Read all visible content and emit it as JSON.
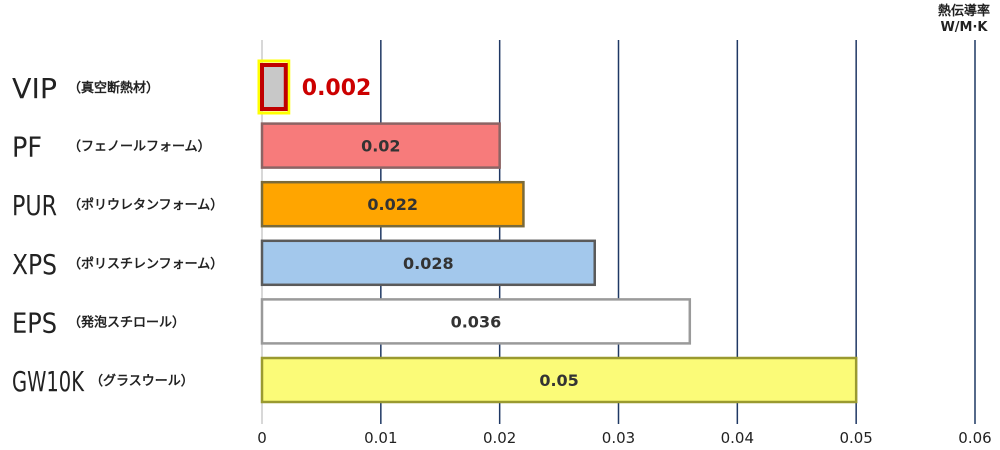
{
  "chart_data": {
    "type": "bar",
    "orientation": "horizontal",
    "unit_label": [
      "熱伝導率",
      "W/M·K"
    ],
    "categories": [
      {
        "abbr": "VIP",
        "name": "（真空断熱材）"
      },
      {
        "abbr": "PF",
        "name": "（フェノールフォーム）"
      },
      {
        "abbr": "PUR",
        "name": "（ポリウレタンフォーム）"
      },
      {
        "abbr": "XPS",
        "name": "（ポリスチレンフォーム）"
      },
      {
        "abbr": "EPS",
        "name": "（発泡スチロール）"
      },
      {
        "abbr": "GW10K",
        "name": "（グラスウール）"
      }
    ],
    "values": [
      0.002,
      0.02,
      0.022,
      0.028,
      0.036,
      0.05
    ],
    "value_labels": [
      "0.002",
      "0.02",
      "0.022",
      "0.028",
      "0.036",
      "0.05"
    ],
    "bar_fill": [
      "#c8c8c8",
      "#f77b7b",
      "#ffa500",
      "#a3c8ec",
      "#ffffff",
      "#fbfb78"
    ],
    "bar_stroke": [
      "#c00000",
      "#8c6464",
      "#7a6a3a",
      "#5a5a5a",
      "#9a9a9a",
      "#9a9a30"
    ],
    "highlight_outline": "#ffff00",
    "highlight_label_color": "#cc0000",
    "xlim": [
      0,
      0.06
    ],
    "xticks": [
      "0",
      "0.01",
      "0.02",
      "0.03",
      "0.04",
      "0.05",
      "0.06"
    ],
    "grid": true,
    "grid_color": "#1f3864"
  }
}
